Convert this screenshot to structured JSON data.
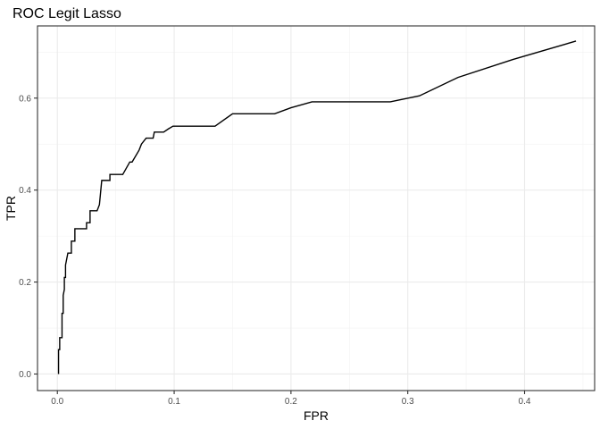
{
  "chart_data": {
    "type": "line",
    "title": "ROC Legit Lasso",
    "xlabel": "FPR",
    "ylabel": "TPR",
    "xlim": [
      -0.017,
      0.46
    ],
    "ylim": [
      -0.036,
      0.757
    ],
    "x_ticks": [
      0.0,
      0.1,
      0.2,
      0.3,
      0.4
    ],
    "x_tick_labels": [
      "0.0",
      "0.1",
      "0.2",
      "0.3",
      "0.4"
    ],
    "y_ticks": [
      0.0,
      0.2,
      0.4,
      0.6
    ],
    "y_tick_labels": [
      "0.0",
      "0.2",
      "0.4",
      "0.6"
    ],
    "x_minor_ticks": [
      0.05,
      0.15,
      0.25,
      0.35,
      0.45
    ],
    "y_minor_ticks": [
      0.1,
      0.3,
      0.5,
      0.7
    ],
    "grid": true,
    "legend": "none",
    "line_color": "#000000",
    "x": [
      0.001,
      0.001,
      0.002,
      0.002,
      0.004,
      0.004,
      0.005,
      0.005,
      0.006,
      0.006,
      0.007,
      0.007,
      0.008,
      0.009,
      0.01,
      0.012,
      0.012,
      0.015,
      0.015,
      0.019,
      0.019,
      0.025,
      0.025,
      0.028,
      0.028,
      0.034,
      0.036,
      0.038,
      0.038,
      0.045,
      0.045,
      0.055,
      0.056,
      0.062,
      0.064,
      0.07,
      0.072,
      0.076,
      0.077,
      0.082,
      0.083,
      0.09,
      0.091,
      0.095,
      0.099,
      0.135,
      0.15,
      0.186,
      0.2,
      0.218,
      0.285,
      0.31,
      0.343,
      0.39,
      0.444
    ],
    "y": [
      0.0,
      0.053,
      0.053,
      0.079,
      0.079,
      0.132,
      0.132,
      0.171,
      0.184,
      0.21,
      0.21,
      0.237,
      0.25,
      0.263,
      0.263,
      0.263,
      0.289,
      0.289,
      0.316,
      0.316,
      0.316,
      0.316,
      0.329,
      0.329,
      0.355,
      0.355,
      0.368,
      0.421,
      0.421,
      0.421,
      0.434,
      0.434,
      0.434,
      0.461,
      0.461,
      0.487,
      0.5,
      0.513,
      0.513,
      0.513,
      0.526,
      0.526,
      0.526,
      0.533,
      0.539,
      0.539,
      0.566,
      0.566,
      0.579,
      0.592,
      0.592,
      0.605,
      0.645,
      0.684,
      0.724
    ]
  }
}
